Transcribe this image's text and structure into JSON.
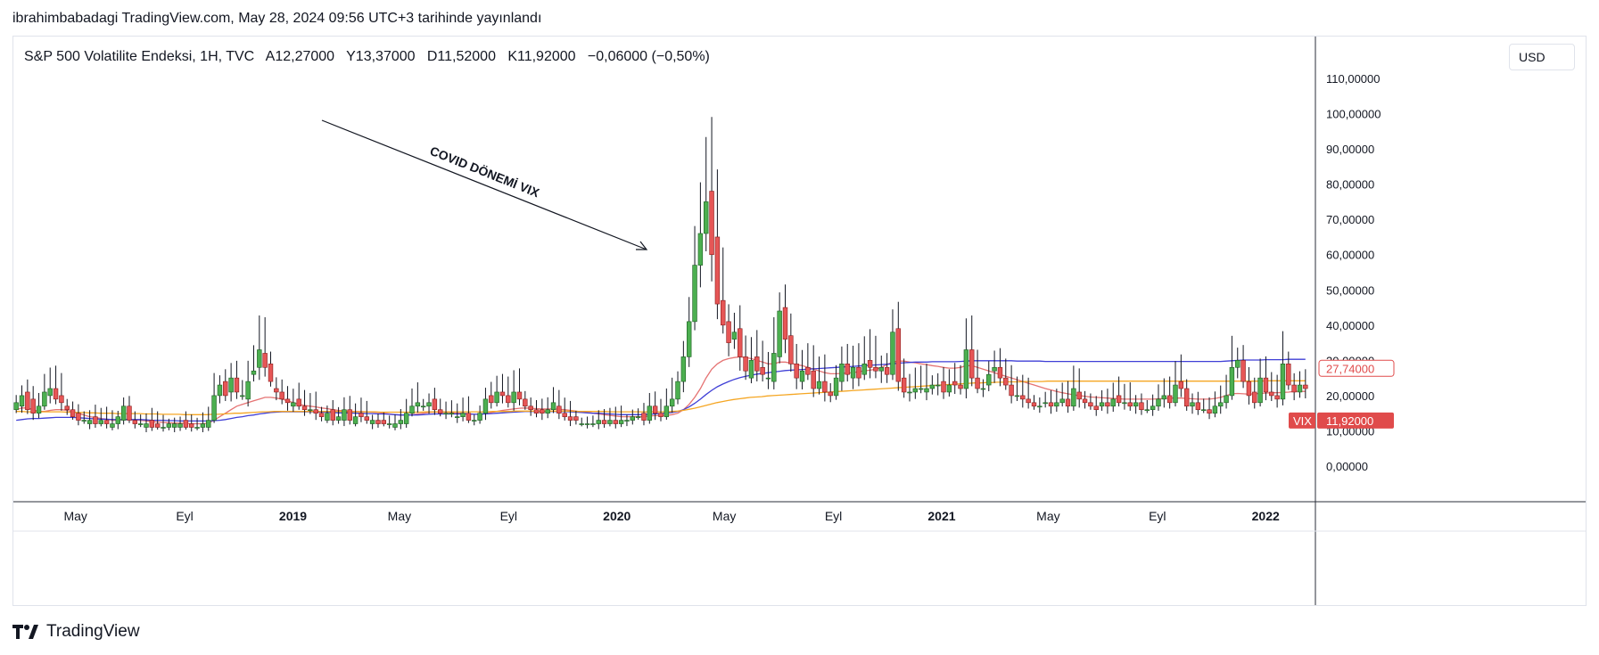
{
  "header": {
    "published_text": "ibrahimbabadagi TradingView.com, May 28, 2024 09:56 UTC+3 tarihinde yayınlandı"
  },
  "legend": {
    "symbol": "S&P 500 Volatilite Endeksi, 1H, TVC",
    "open": "A12,27000",
    "high": "Y13,37000",
    "low": "D11,52000",
    "close": "K11,92000",
    "change": "−0,06000 (−0,50%)"
  },
  "currency": "USD",
  "annotation": {
    "text": "COVID DÖNEMİ VIX"
  },
  "footer": {
    "brand": "TradingView",
    "logo_icon": "tradingview-logo-icon"
  },
  "colors": {
    "up": "#4caf50",
    "up_dark": "#1b5e20",
    "down": "#e65656",
    "down_dark": "#8b1a1a",
    "ma_red": "#e57373",
    "ma_blue": "#3f3fd6",
    "ma_orange": "#f5a623",
    "price_badge": "#e04b4b",
    "ma_badge": "#e04b4b"
  },
  "badges": {
    "ma_value": "27,74000",
    "ticker": "VIX",
    "last_price": "11,92000"
  },
  "chart_data": {
    "type": "candlestick",
    "title": "S&P 500 Volatilite Endeksi, 1H, TVC",
    "ylim": [
      -10,
      118
    ],
    "y_ticks": [
      "110,00000",
      "100,00000",
      "90,00000",
      "80,00000",
      "70,00000",
      "60,00000",
      "50,00000",
      "40,00000",
      "30,00000",
      "20,00000",
      "10,00000",
      "0,00000"
    ],
    "y_tick_values": [
      110,
      100,
      90,
      80,
      70,
      60,
      50,
      40,
      30,
      20,
      10,
      0
    ],
    "x_tick_labels": [
      {
        "label": "May",
        "bold": false,
        "date": "2018-05"
      },
      {
        "label": "Eyl",
        "bold": false,
        "date": "2018-09"
      },
      {
        "label": "2019",
        "bold": true,
        "date": "2019-01"
      },
      {
        "label": "May",
        "bold": false,
        "date": "2019-05"
      },
      {
        "label": "Eyl",
        "bold": false,
        "date": "2019-09"
      },
      {
        "label": "2020",
        "bold": true,
        "date": "2020-01"
      },
      {
        "label": "May",
        "bold": false,
        "date": "2020-05"
      },
      {
        "label": "Eyl",
        "bold": false,
        "date": "2020-09"
      },
      {
        "label": "2021",
        "bold": true,
        "date": "2021-01"
      },
      {
        "label": "May",
        "bold": false,
        "date": "2021-05"
      },
      {
        "label": "Eyl",
        "bold": false,
        "date": "2021-09"
      },
      {
        "label": "2022",
        "bold": true,
        "date": "2022-01"
      }
    ],
    "last_price": 11.92,
    "ma_last": 27.74,
    "candles": {
      "close": [
        18,
        20,
        16,
        15,
        17,
        21,
        22,
        19,
        18,
        16,
        14,
        13,
        13,
        13,
        12,
        13,
        12,
        12,
        14,
        17,
        13,
        12,
        12,
        12,
        11,
        11,
        11,
        12,
        12,
        12,
        11,
        11,
        11,
        12,
        13,
        20,
        23,
        20,
        25,
        21,
        20,
        24,
        27,
        33,
        28,
        24,
        21,
        19,
        18,
        18,
        17,
        16,
        16,
        15,
        14,
        15,
        13,
        14,
        16,
        13,
        14,
        14,
        13,
        13,
        12,
        12,
        12,
        12,
        13,
        15,
        17,
        18,
        17,
        18,
        16,
        15,
        15,
        15,
        14,
        15,
        13,
        13,
        15,
        19,
        18,
        21,
        20,
        18,
        21,
        19,
        17,
        16,
        15,
        15,
        16,
        18,
        15,
        14,
        13,
        13,
        12,
        12,
        12,
        13,
        12,
        13,
        12,
        13,
        13,
        14,
        14,
        13,
        17,
        15,
        14,
        17,
        19,
        24,
        31,
        41,
        57,
        66,
        75,
        60,
        46,
        40,
        35,
        38,
        31,
        27,
        30,
        27,
        26,
        25,
        32,
        44,
        36,
        29,
        25,
        27,
        26,
        22,
        24,
        21,
        20,
        25,
        29,
        26,
        28,
        25,
        29,
        28,
        27,
        28,
        26,
        38,
        24,
        21,
        21,
        22,
        22,
        22,
        23,
        23,
        21,
        23,
        23,
        22,
        33,
        25,
        22,
        22,
        26,
        28,
        25,
        23,
        20,
        20,
        19,
        18,
        17,
        17,
        18,
        17,
        18,
        19,
        17,
        22,
        19,
        18,
        17,
        16,
        18,
        17,
        19,
        18,
        18,
        17,
        18,
        16,
        16,
        17,
        19,
        20,
        18,
        23,
        22,
        17,
        18,
        16,
        16,
        15,
        17,
        18,
        20,
        28,
        30,
        24,
        20,
        18,
        25,
        21,
        20,
        19,
        29,
        23,
        21,
        23,
        22
      ],
      "open": [
        16,
        17,
        21,
        19,
        15,
        17,
        20,
        22,
        20,
        17,
        16,
        15,
        13,
        12,
        14,
        12,
        13,
        11,
        12,
        13,
        17,
        13,
        12,
        11,
        13,
        12,
        11,
        11,
        11,
        11,
        13,
        12,
        11,
        11,
        11,
        13,
        20,
        24,
        21,
        25,
        20,
        19,
        26,
        28,
        32,
        29,
        22,
        21,
        19,
        17,
        19,
        17,
        16,
        16,
        15,
        13,
        16,
        13,
        13,
        16,
        12,
        15,
        14,
        12,
        13,
        13,
        12,
        11,
        12,
        12,
        15,
        17,
        17,
        17,
        19,
        16,
        15,
        15,
        14,
        14,
        15,
        13,
        13,
        15,
        20,
        18,
        21,
        20,
        18,
        21,
        19,
        17,
        16,
        16,
        15,
        16,
        17,
        15,
        14,
        14,
        12,
        12,
        12,
        12,
        13,
        12,
        13,
        12,
        13,
        13,
        14,
        15,
        13,
        17,
        15,
        14,
        17,
        19,
        24,
        31,
        41,
        57,
        66,
        78,
        65,
        47,
        41,
        36,
        39,
        31,
        25,
        31,
        28,
        25,
        24,
        31,
        45,
        37,
        29,
        24,
        28,
        27,
        22,
        24,
        21,
        20,
        24,
        29,
        25,
        28,
        26,
        30,
        28,
        27,
        28,
        26,
        39,
        25,
        21,
        21,
        22,
        21,
        22,
        23,
        24,
        21,
        24,
        23,
        22,
        33,
        25,
        22,
        23,
        27,
        28,
        25,
        23,
        20,
        20,
        19,
        18,
        17,
        18,
        18,
        17,
        18,
        19,
        17,
        21,
        19,
        18,
        17,
        17,
        18,
        17,
        20,
        18,
        18,
        17,
        18,
        16,
        16,
        17,
        19,
        20,
        18,
        24,
        22,
        17,
        18,
        16,
        16,
        15,
        17,
        18,
        20,
        28,
        30,
        24,
        21,
        18,
        25,
        21,
        20,
        19,
        29,
        23,
        21,
        23
      ]
    },
    "moving_averages": [
      {
        "color": "red",
        "values": [
          16,
          16.5,
          16.5,
          16,
          15.5,
          15.5,
          15.8,
          16,
          16,
          15.8,
          15.5,
          15,
          14.5,
          14,
          13.8,
          13.5,
          13.3,
          13,
          13,
          13.2,
          13.2,
          13.1,
          13,
          12.8,
          12.6,
          12.5,
          12.4,
          12.3,
          12.2,
          12.2,
          12.1,
          12,
          12,
          12,
          12.2,
          13,
          14,
          15,
          16,
          17,
          17.5,
          18,
          18.5,
          19,
          19.5,
          19.5,
          19.3,
          19,
          18.5,
          18,
          17.5,
          17.2,
          17,
          16.8,
          16.5,
          16.3,
          16,
          15.8,
          15.7,
          15.5,
          15.5,
          15.5,
          15.4,
          15.3,
          15.2,
          15,
          14.8,
          14.6,
          14.5,
          14.5,
          14.6,
          14.8,
          15,
          15.2,
          15.3,
          15.3,
          15.3,
          15.2,
          15,
          15,
          14.8,
          14.7,
          14.7,
          14.9,
          15.2,
          15.5,
          15.8,
          16,
          16.2,
          16.4,
          16.5,
          16.4,
          16.3,
          16.2,
          16.2,
          16.2,
          16.1,
          16,
          15.8,
          15.6,
          15.4,
          15.2,
          15,
          14.8,
          14.6,
          14.4,
          14.2,
          14,
          14,
          14,
          14,
          14,
          14.2,
          14.3,
          14.3,
          14.4,
          14.6,
          15,
          16,
          17.5,
          19.5,
          22,
          25,
          27.5,
          29,
          30,
          30.5,
          30.8,
          31,
          30.8,
          30.5,
          30,
          29.5,
          29,
          29,
          29.5,
          29.5,
          29.2,
          28.8,
          28.5,
          28,
          27.5,
          27,
          26.5,
          26.2,
          26.2,
          26.3,
          26.4,
          26.5,
          26.8,
          27,
          27.2,
          27.5,
          28,
          28.8,
          29.5,
          29.8,
          29.8,
          29.5,
          29.3,
          29,
          28.8,
          28.5,
          28.3,
          28,
          27.8,
          27.8,
          28,
          28.5,
          28.5,
          28,
          27.5,
          27,
          26.5,
          26,
          25.5,
          25,
          24.5,
          24,
          23.5,
          23,
          22.5,
          22,
          21.6,
          21.2,
          20.8,
          20.5,
          20.2,
          20,
          19.8,
          19.6,
          19.5,
          19.4,
          19.3,
          19.2,
          19.1,
          19,
          19,
          19,
          19,
          19,
          19,
          19.1,
          19.2,
          19.3,
          19.3,
          19.3,
          19.2,
          19.1,
          19,
          19,
          19,
          19.2,
          19.5,
          20,
          20.5,
          20.6,
          20.5,
          20.4,
          20.5,
          20.6,
          20.7,
          20.8,
          20.8,
          20.9,
          21,
          21.2,
          21.2,
          21.2
        ]
      },
      {
        "color": "blue",
        "values": [
          13,
          13.2,
          13.4,
          13.5,
          13.5,
          13.6,
          13.7,
          13.8,
          13.8,
          13.8,
          13.8,
          13.7,
          13.6,
          13.5,
          13.4,
          13.3,
          13.3,
          13.2,
          13.2,
          13.2,
          13.2,
          13.2,
          13.2,
          13.1,
          13,
          13,
          13,
          12.9,
          12.9,
          12.8,
          12.8,
          12.8,
          12.8,
          12.8,
          12.8,
          12.9,
          13,
          13.2,
          13.5,
          13.8,
          14,
          14.3,
          14.5,
          14.8,
          15,
          15.2,
          15.3,
          15.4,
          15.4,
          15.4,
          15.4,
          15.4,
          15.4,
          15.4,
          15.3,
          15.3,
          15.2,
          15.1,
          15.1,
          15.1,
          15,
          15,
          14.9,
          14.9,
          14.8,
          14.8,
          14.7,
          14.6,
          14.5,
          14.5,
          14.5,
          14.5,
          14.6,
          14.7,
          14.8,
          14.8,
          14.8,
          14.8,
          14.8,
          14.8,
          14.8,
          14.7,
          14.7,
          14.8,
          14.9,
          15,
          15.1,
          15.2,
          15.3,
          15.4,
          15.5,
          15.5,
          15.5,
          15.5,
          15.5,
          15.5,
          15.5,
          15.5,
          15.4,
          15.3,
          15.2,
          15.1,
          15,
          15,
          14.9,
          14.8,
          14.7,
          14.6,
          14.6,
          14.6,
          14.6,
          14.6,
          14.7,
          14.8,
          14.9,
          15,
          15.2,
          15.5,
          16,
          16.8,
          17.8,
          19,
          20.3,
          21.5,
          22.5,
          23.3,
          24,
          24.6,
          25.1,
          25.5,
          25.8,
          26.1,
          26.3,
          26.5,
          26.7,
          26.9,
          27.1,
          27.2,
          27.3,
          27.4,
          27.5,
          27.6,
          27.7,
          27.8,
          27.9,
          28,
          28.1,
          28.2,
          28.3,
          28.4,
          28.5,
          28.6,
          28.7,
          28.8,
          28.9,
          29,
          29.2,
          29.3,
          29.4,
          29.5,
          29.5,
          29.5,
          29.6,
          29.6,
          29.6,
          29.6,
          29.6,
          29.7,
          29.8,
          29.9,
          29.9,
          29.9,
          29.9,
          29.9,
          29.9,
          29.9,
          29.9,
          29.8,
          29.8,
          29.8,
          29.8,
          29.8,
          29.7,
          29.7,
          29.7,
          29.7,
          29.7,
          29.7,
          29.7,
          29.7,
          29.7,
          29.7,
          29.7,
          29.7,
          29.7,
          29.7,
          29.7,
          29.7,
          29.7,
          29.7,
          29.7,
          29.7,
          29.7,
          29.7,
          29.7,
          29.7,
          29.7,
          29.7,
          29.7,
          29.7,
          29.7,
          29.7,
          29.7,
          29.7,
          29.8,
          29.9,
          30,
          30.1,
          30.1,
          30.1,
          30.1,
          30.2,
          30.2,
          30.2,
          30.2,
          30.3,
          30.3,
          30.3,
          30.3
        ]
      },
      {
        "color": "orange",
        "values": [
          15.5,
          15.5,
          15.4,
          15.4,
          15.4,
          15.4,
          15.4,
          15.4,
          15.4,
          15.3,
          15.3,
          15.2,
          15.2,
          15.1,
          15.1,
          15,
          15,
          15,
          14.9,
          14.9,
          14.9,
          14.9,
          14.9,
          14.8,
          14.8,
          14.8,
          14.7,
          14.7,
          14.7,
          14.7,
          14.6,
          14.6,
          14.6,
          14.6,
          14.6,
          14.7,
          14.7,
          14.8,
          14.9,
          15,
          15,
          15.1,
          15.2,
          15.3,
          15.4,
          15.4,
          15.5,
          15.5,
          15.5,
          15.5,
          15.5,
          15.5,
          15.5,
          15.5,
          15.5,
          15.5,
          15.5,
          15.5,
          15.5,
          15.4,
          15.4,
          15.4,
          15.4,
          15.4,
          15.4,
          15.3,
          15.3,
          15.3,
          15.3,
          15.3,
          15.3,
          15.3,
          15.3,
          15.4,
          15.4,
          15.4,
          15.4,
          15.4,
          15.4,
          15.4,
          15.4,
          15.4,
          15.4,
          15.4,
          15.4,
          15.5,
          15.5,
          15.5,
          15.5,
          15.6,
          15.6,
          15.6,
          15.6,
          15.6,
          15.6,
          15.6,
          15.6,
          15.6,
          15.6,
          15.6,
          15.5,
          15.5,
          15.5,
          15.5,
          15.5,
          15.5,
          15.4,
          15.4,
          15.4,
          15.4,
          15.4,
          15.4,
          15.4,
          15.4,
          15.4,
          15.4,
          15.4,
          15.5,
          15.6,
          15.8,
          16.1,
          16.4,
          16.8,
          17.2,
          17.6,
          18,
          18.3,
          18.6,
          18.9,
          19.1,
          19.3,
          19.5,
          19.6,
          19.7,
          19.9,
          20,
          20.1,
          20.2,
          20.3,
          20.4,
          20.5,
          20.6,
          20.7,
          20.8,
          20.9,
          21,
          21.1,
          21.2,
          21.3,
          21.4,
          21.5,
          21.6,
          21.7,
          21.8,
          21.9,
          22,
          22.1,
          22.2,
          22.3,
          22.4,
          22.5,
          22.6,
          22.7,
          22.8,
          22.9,
          23,
          23.1,
          23.2,
          23.3,
          23.4,
          23.5,
          23.6,
          23.6,
          23.7,
          23.7,
          23.8,
          23.8,
          23.9,
          23.9,
          23.9,
          24,
          24,
          24,
          24,
          24.1,
          24.1,
          24.1,
          24.1,
          24.1,
          24.1,
          24.1,
          24.1,
          24.1,
          24.1,
          24.1,
          24.1,
          24.1,
          24.1,
          24.1,
          24.1,
          24.1,
          24.1,
          24.1,
          24.1,
          24.1,
          24.1,
          24.1,
          24.1,
          24.1,
          24.1,
          24.1,
          24.1,
          24.1,
          24.1,
          24.1,
          24.1,
          24.1,
          24.1,
          24.1,
          24.1,
          24.1,
          24.1,
          24.1,
          24.2,
          24.2,
          24.2,
          24.2,
          24.2,
          24.2,
          24.2,
          24.2
        ]
      }
    ]
  }
}
